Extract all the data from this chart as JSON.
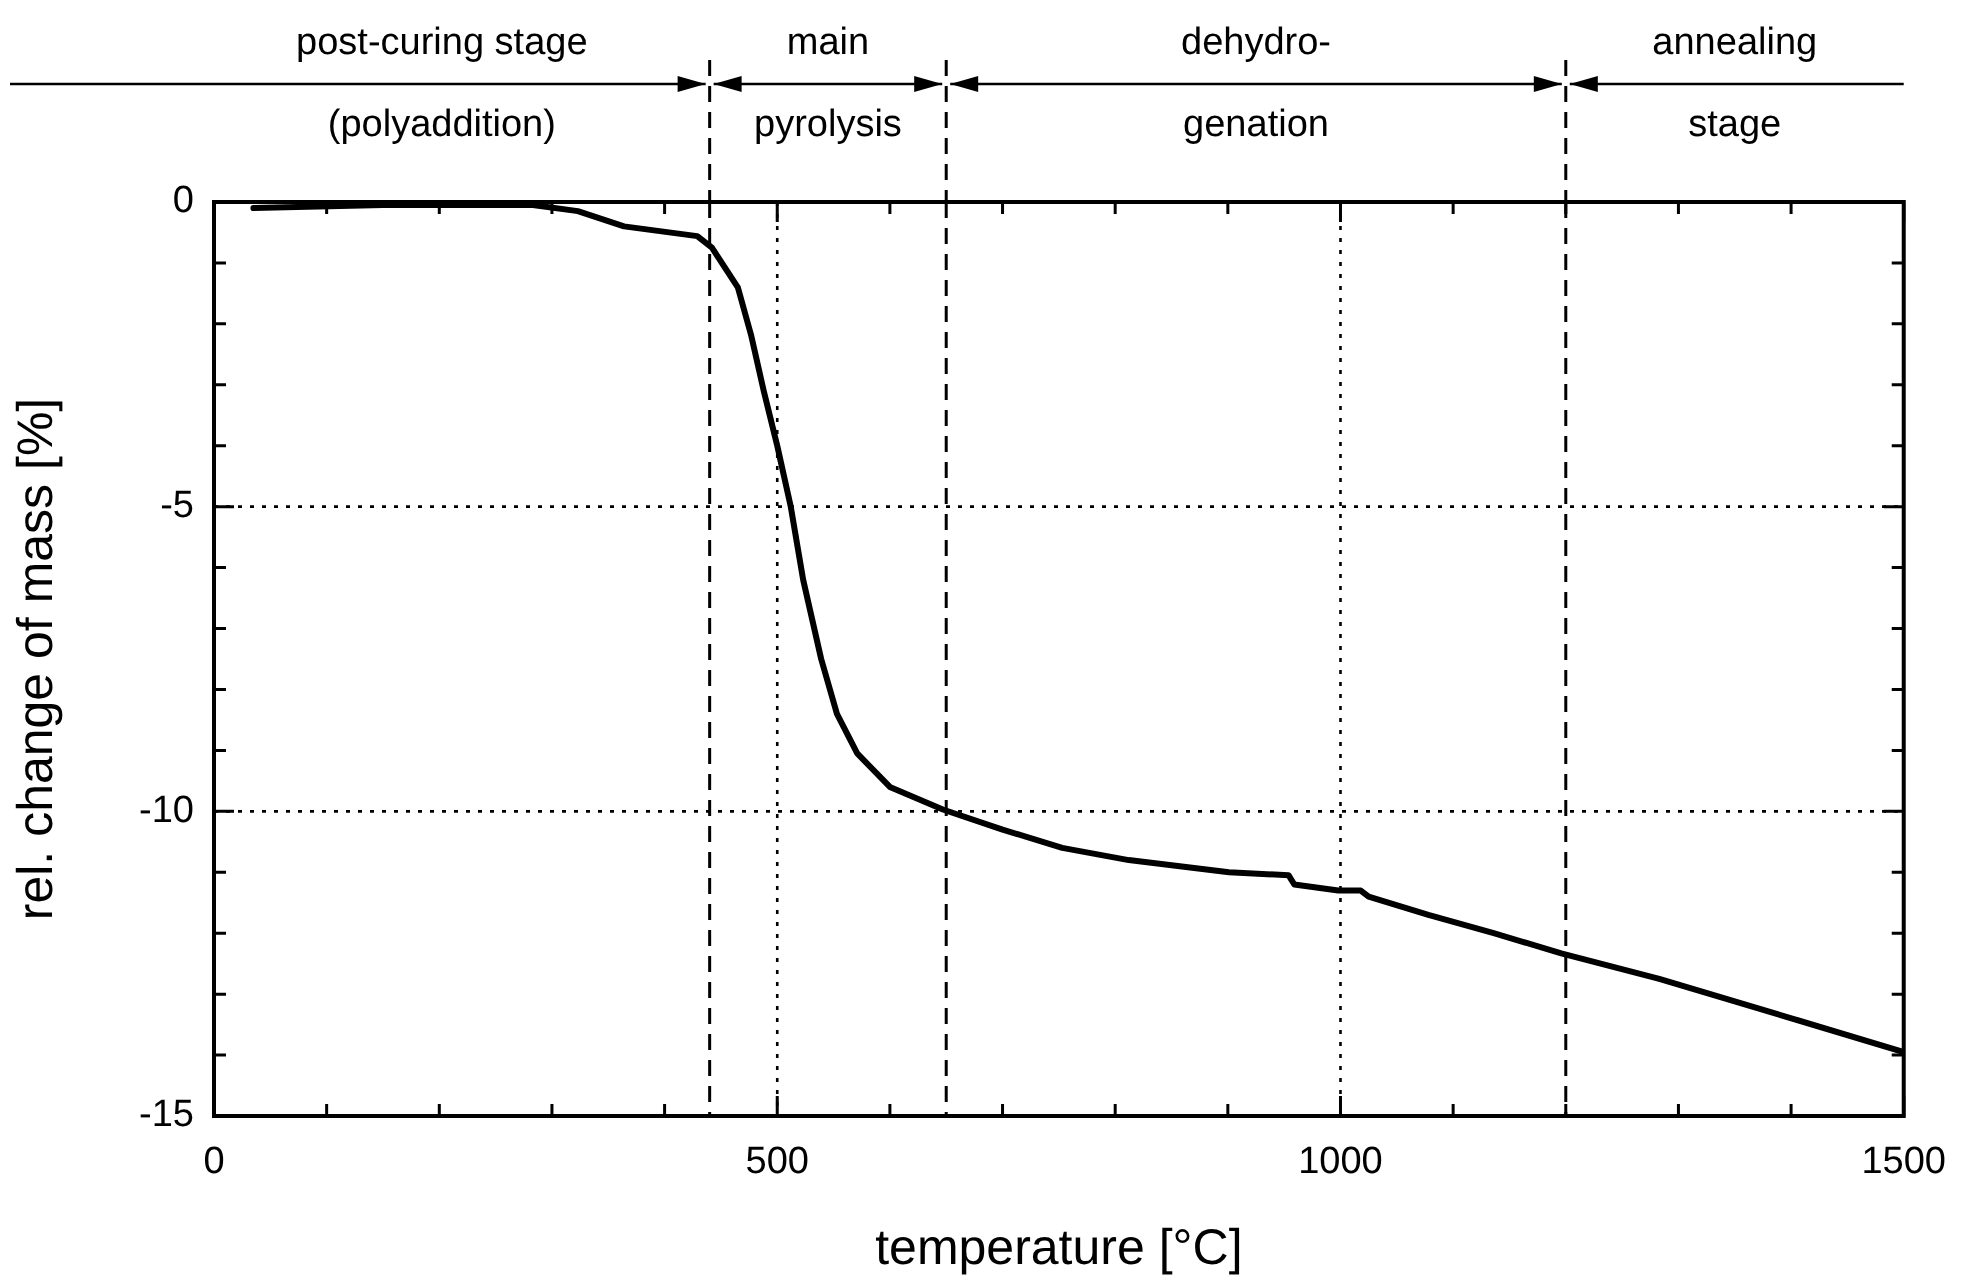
{
  "chart_data": {
    "type": "line",
    "xlabel": "temperature [°C]",
    "ylabel": "rel. change of mass [%]",
    "xlim": [
      0,
      1500
    ],
    "xticks": [
      0,
      {
        "value": 100,
        "label": null
      },
      {
        "value": 200,
        "label": null
      },
      {
        "value": 300,
        "label": null
      },
      {
        "value": 400,
        "label": null
      },
      500,
      {
        "value": 600,
        "label": null
      },
      {
        "value": 700,
        "label": null
      },
      {
        "value": 800,
        "label": null
      },
      {
        "value": 900,
        "label": null
      },
      1000,
      {
        "value": 1100,
        "label": null
      },
      {
        "value": 1200,
        "label": null
      },
      {
        "value": 1300,
        "label": null
      },
      {
        "value": 1400,
        "label": null
      },
      1500
    ],
    "ylim": [
      -15,
      0
    ],
    "yticks": [
      -15,
      {
        "value": -14,
        "label": null
      },
      {
        "value": -13,
        "label": null
      },
      {
        "value": -12,
        "label": null
      },
      {
        "value": -11,
        "label": null
      },
      -10,
      {
        "value": -9,
        "label": null
      },
      {
        "value": -8,
        "label": null
      },
      {
        "value": -7,
        "label": null
      },
      {
        "value": -6,
        "label": null
      },
      -5,
      {
        "value": -4,
        "label": null
      },
      {
        "value": -3,
        "label": null
      },
      {
        "value": -2,
        "label": null
      },
      {
        "value": -1,
        "label": null
      },
      0
    ],
    "grid": true,
    "marker": "none",
    "line_style": "solid",
    "series": [
      {
        "color": "#000000",
        "x": [
          35,
          150,
          283,
          323,
          364,
          429,
          442,
          465,
          477,
          488,
          500,
          512,
          523,
          539,
          553,
          571,
          600,
          647,
          700,
          753,
          812,
          901,
          954,
          959,
          998,
          1018,
          1025,
          1078,
          1136,
          1196,
          1283,
          1401,
          1500
        ],
        "values": [
          -0.1,
          -0.05,
          -0.05,
          -0.15,
          -0.4,
          -0.56,
          -0.75,
          -1.4,
          -2.2,
          -3.1,
          -4.0,
          -5.0,
          -6.2,
          -7.5,
          -8.4,
          -9.05,
          -9.6,
          -9.97,
          -10.3,
          -10.6,
          -10.8,
          -11.0,
          -11.05,
          -11.2,
          -11.3,
          -11.3,
          -11.4,
          -11.7,
          -12.0,
          -12.33,
          -12.75,
          -13.4,
          -13.95
        ]
      }
    ],
    "ref_lines": [
      {
        "axis": "x",
        "value": 440,
        "line_style": "dashed"
      },
      {
        "axis": "x",
        "value": 650,
        "line_style": "dashed"
      },
      {
        "axis": "x",
        "value": 1200,
        "line_style": "dashed"
      }
    ],
    "annotations": [
      "post-curing stage\n(polyaddition)",
      "main\npyrolysis",
      "dehydro-\ngenation",
      "annealing\nstage"
    ]
  }
}
